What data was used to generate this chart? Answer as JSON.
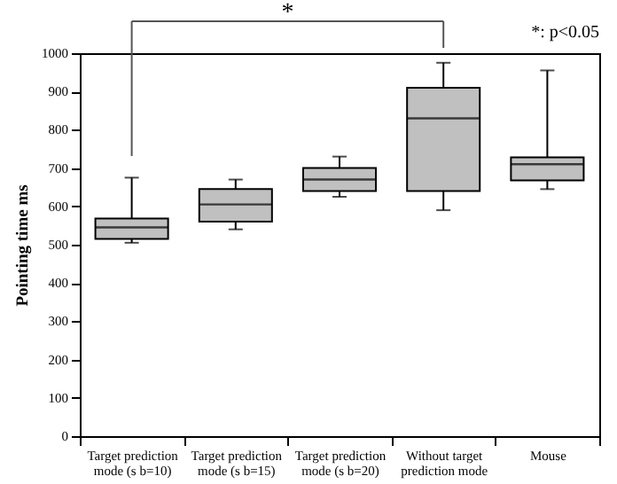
{
  "chart_data": {
    "type": "box",
    "ylabel": "Pointing time  ms",
    "categories": [
      "Target prediction mode (s b=10)",
      "Target prediction mode (s b=15)",
      "Target prediction mode (s b=20)",
      "Without target prediction mode",
      "Mouse"
    ],
    "boxes": [
      {
        "low": 505,
        "q1": 515,
        "median": 545,
        "q3": 568,
        "high": 675
      },
      {
        "low": 540,
        "q1": 560,
        "median": 605,
        "q3": 645,
        "high": 670
      },
      {
        "low": 625,
        "q1": 640,
        "median": 670,
        "q3": 700,
        "high": 730
      },
      {
        "low": 590,
        "q1": 640,
        "median": 830,
        "q3": 910,
        "high": 975
      },
      {
        "low": 645,
        "q1": 668,
        "median": 710,
        "q3": 728,
        "high": 955
      }
    ],
    "color": "#c0c0c0",
    "ylim": [
      0,
      1000
    ],
    "yticks": [
      0,
      100,
      200,
      300,
      400,
      500,
      600,
      700,
      800,
      900,
      1000
    ],
    "grid": false,
    "annotations": [
      "*",
      "*: p<0.05"
    ]
  }
}
